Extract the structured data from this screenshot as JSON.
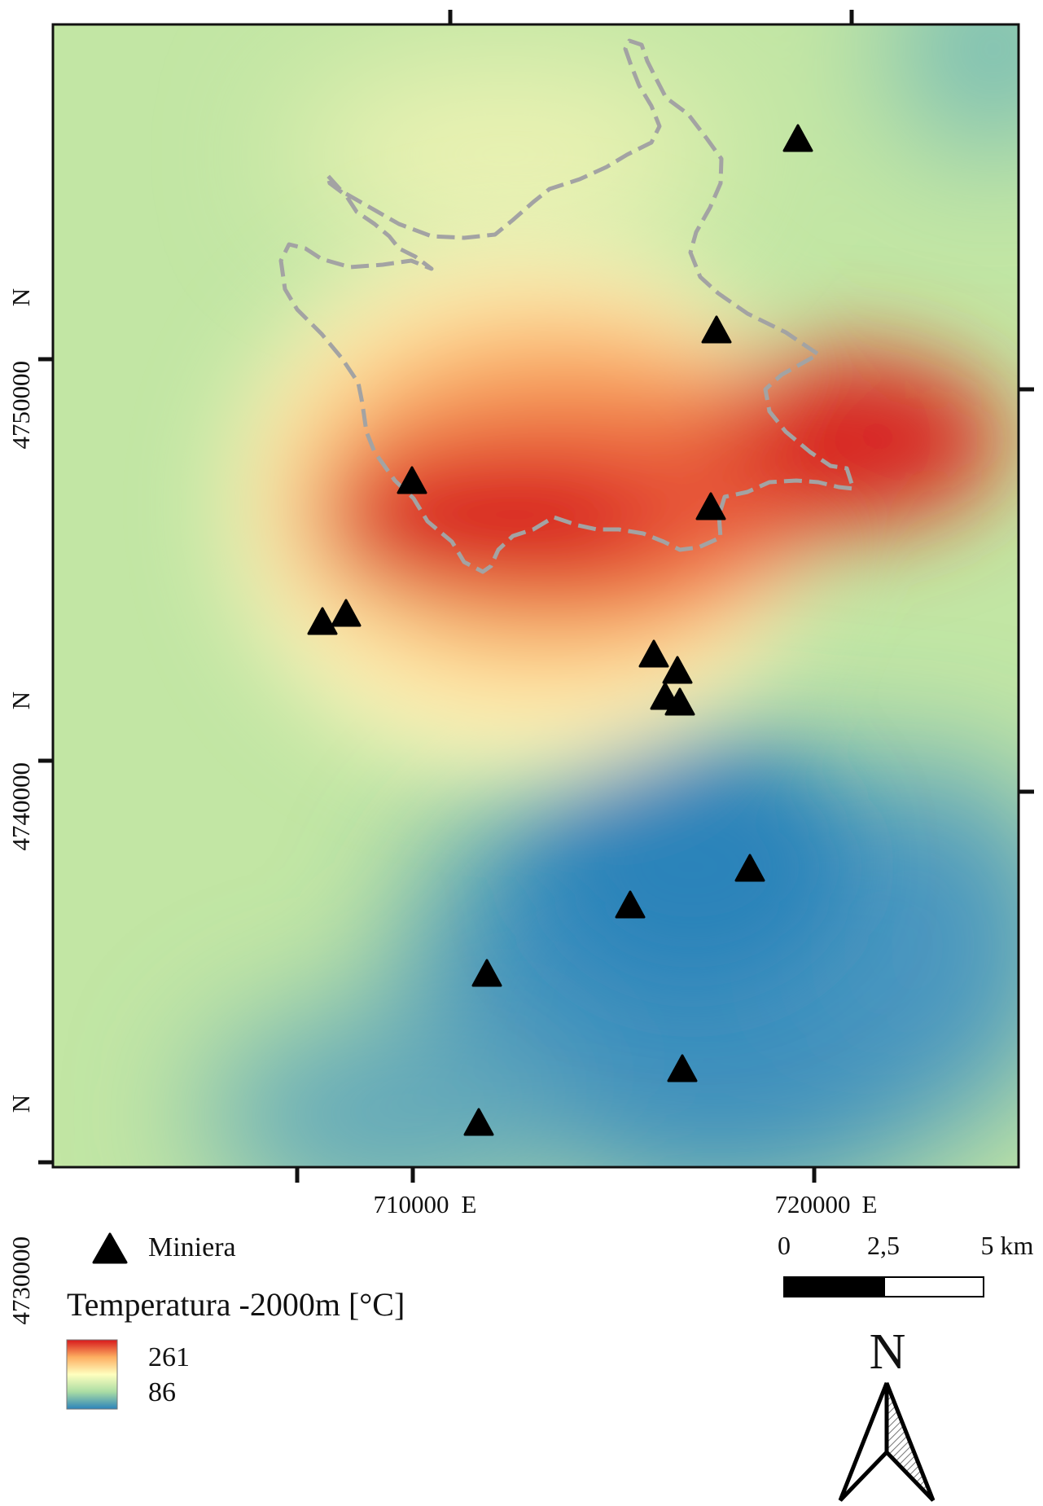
{
  "map": {
    "axes": {
      "easting_ticks": [
        {
          "value": "710000",
          "unit": "E"
        },
        {
          "value": "720000",
          "unit": "E"
        }
      ],
      "northing_ticks": [
        {
          "value": "4730000",
          "unit": "N"
        },
        {
          "value": "4740000",
          "unit": "N"
        },
        {
          "value": "4750000",
          "unit": "N"
        }
      ]
    },
    "colors": {
      "hot": "#d7191c",
      "warm": "#fdae61",
      "mid": "#ffffbf",
      "cool": "#abdda4",
      "cold": "#2b83ba",
      "boundary": "#a3a3a3",
      "marker": "#000000"
    },
    "icons": {
      "marker": "triangle-icon",
      "north": "north-arrow-icon"
    }
  },
  "legend": {
    "marker_label": "Miniera",
    "raster_title": "Temperatura -2000m [°C]",
    "max_value": "261",
    "min_value": "86"
  },
  "scalebar": {
    "labels": [
      "0",
      "2,5",
      "5 km"
    ]
  },
  "north_arrow": {
    "label": "N"
  }
}
